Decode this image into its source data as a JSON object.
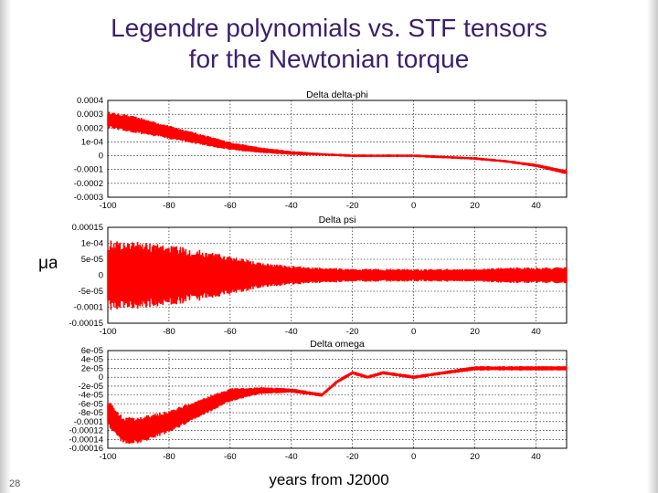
{
  "title_line1": "Legendre polynomials vs. STF tensors",
  "title_line2": "for the Newtonian torque",
  "unit_label": "μas",
  "x_axis_label": "years from J2000",
  "slide_number": "28",
  "colors": {
    "series": "#ff0000",
    "title": "#3b1f6e"
  },
  "chart_data": [
    {
      "type": "line",
      "title": "Delta delta-phi",
      "xlim": [
        -100,
        50
      ],
      "x_ticks": [
        "-100",
        "-80",
        "-60",
        "-40",
        "-20",
        "0",
        "20",
        "40"
      ],
      "ylim": [
        -0.0003,
        0.0004
      ],
      "y_ticks": [
        "0.0004",
        "0.0003",
        "0.0002",
        "1e-04",
        "0",
        "-0.0001",
        "-0.0002",
        "-0.0003"
      ],
      "envelope": {
        "x": [
          -100,
          -90,
          -80,
          -70,
          -60,
          -50,
          -40,
          -30,
          -20,
          -10,
          0,
          10,
          20,
          30,
          40,
          50
        ],
        "center": [
          0.00026,
          0.00022,
          0.00017,
          0.00012,
          7e-05,
          4e-05,
          2e-05,
          1e-05,
          0.0,
          0.0,
          0.0,
          -1e-05,
          -2e-05,
          -4e-05,
          -7e-05,
          -0.00012
        ],
        "half_width": [
          6e-05,
          6e-05,
          5e-05,
          4e-05,
          3e-05,
          2e-05,
          1.5e-05,
          1e-05,
          1e-05,
          1e-05,
          1e-05,
          1e-05,
          1e-05,
          1e-05,
          1.2e-05,
          1.5e-05
        ]
      }
    },
    {
      "type": "line",
      "title": "Delta psi",
      "xlim": [
        -100,
        50
      ],
      "x_ticks": [
        "-100",
        "-80",
        "-60",
        "-40",
        "-20",
        "0",
        "20",
        "40"
      ],
      "ylim": [
        -0.00015,
        0.00015
      ],
      "y_ticks": [
        "0.00015",
        "1e-04",
        "5e-05",
        "0",
        "-5e-05",
        "-0.0001",
        "-0.00015"
      ],
      "envelope": {
        "x": [
          -100,
          -90,
          -80,
          -70,
          -60,
          -50,
          -40,
          -30,
          -20,
          -10,
          0,
          10,
          20,
          30,
          40,
          50
        ],
        "center": [
          0,
          0,
          0,
          0,
          0,
          0,
          0,
          0,
          0,
          0,
          0,
          0,
          0,
          0,
          0,
          0
        ],
        "half_width": [
          0.00011,
          0.000105,
          9.5e-05,
          8e-05,
          6e-05,
          4e-05,
          3e-05,
          2.5e-05,
          2e-05,
          2e-05,
          2e-05,
          2e-05,
          2e-05,
          2.5e-05,
          2.5e-05,
          2.5e-05
        ]
      }
    },
    {
      "type": "line",
      "title": "Delta omega",
      "xlim": [
        -100,
        50
      ],
      "x_ticks": [
        "-100",
        "-80",
        "-60",
        "-40",
        "-20",
        "0",
        "20",
        "40"
      ],
      "ylim": [
        -0.00016,
        6e-05
      ],
      "y_ticks": [
        "6e-05",
        "4e-05",
        "2e-05",
        "0",
        "-2e-05",
        "-4e-05",
        "-6e-05",
        "-8e-05",
        "-0.0001",
        "-0.00012",
        "-0.00014",
        "-0.00016"
      ],
      "envelope": {
        "x": [
          -100,
          -95,
          -90,
          -80,
          -70,
          -60,
          -50,
          -40,
          -30,
          -25,
          -20,
          -15,
          -10,
          0,
          10,
          20,
          30,
          40,
          50
        ],
        "center": [
          -8e-05,
          -0.00012,
          -0.00012,
          -0.0001,
          -7e-05,
          -4e-05,
          -3e-05,
          -3e-05,
          -4e-05,
          -1e-05,
          1e-05,
          0.0,
          1e-05,
          0.0,
          1e-05,
          2e-05,
          2e-05,
          2e-05,
          2e-05
        ],
        "half_width": [
          3e-05,
          3e-05,
          3e-05,
          2.5e-05,
          2e-05,
          1.5e-05,
          8e-06,
          5e-06,
          4e-06,
          4e-06,
          4e-06,
          4e-06,
          4e-06,
          4e-06,
          4e-06,
          5e-06,
          5e-06,
          5e-06,
          5e-06
        ]
      }
    }
  ]
}
